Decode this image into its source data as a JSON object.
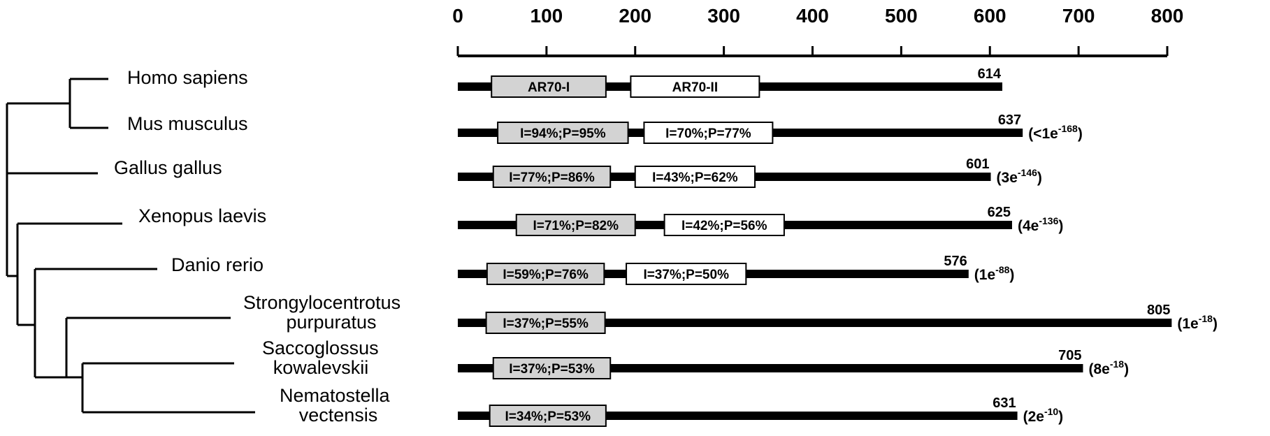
{
  "axis": {
    "ticks": [
      0,
      100,
      200,
      300,
      400,
      500,
      600,
      700,
      800
    ],
    "tick_labels": [
      "0",
      "100",
      "200",
      "300",
      "400",
      "500",
      "600",
      "700",
      "800"
    ],
    "range": [
      0,
      800
    ]
  },
  "domains": {
    "first_name": "AR70-I",
    "second_name": "AR70-II",
    "first_fill": "#d3d3d3",
    "second_fill": "#ffffff"
  },
  "rows": [
    {
      "species": [
        "Homo sapiens"
      ],
      "length": 614,
      "length_label": "614",
      "d1": {
        "start": 38,
        "end": 167,
        "label": "AR70-I"
      },
      "d2": {
        "start": 195,
        "end": 340,
        "label": "AR70-II"
      },
      "evalue": null
    },
    {
      "species": [
        "Mus musculus"
      ],
      "length": 637,
      "length_label": "637",
      "d1": {
        "start": 45,
        "end": 192,
        "label": "I=94%;P=95%"
      },
      "d2": {
        "start": 210,
        "end": 355,
        "label": "I=70%;P=77%"
      },
      "evalue": {
        "prefix": "(<1e",
        "exp": "-168",
        "suffix": ")"
      }
    },
    {
      "species": [
        "Gallus gallus"
      ],
      "length": 601,
      "length_label": "601",
      "d1": {
        "start": 40,
        "end": 172,
        "label": "I=77%;P=86%"
      },
      "d2": {
        "start": 200,
        "end": 335,
        "label": "I=43%;P=62%"
      },
      "evalue": {
        "prefix": "(3e",
        "exp": "-146",
        "suffix": ")"
      }
    },
    {
      "species": [
        "Xenopus laevis"
      ],
      "length": 625,
      "length_label": "625",
      "d1": {
        "start": 66,
        "end": 200,
        "label": "I=71%;P=82%"
      },
      "d2": {
        "start": 233,
        "end": 368,
        "label": "I=42%;P=56%"
      },
      "evalue": {
        "prefix": "(4e",
        "exp": "-136",
        "suffix": ")"
      }
    },
    {
      "species": [
        "Danio rerio"
      ],
      "length": 576,
      "length_label": "576",
      "d1": {
        "start": 33,
        "end": 165,
        "label": "I=59%;P=76%"
      },
      "d2": {
        "start": 190,
        "end": 325,
        "label": "I=37%;P=50%"
      },
      "evalue": {
        "prefix": "(1e",
        "exp": "-88",
        "suffix": ")"
      }
    },
    {
      "species": [
        "Strongylocentrotus",
        "purpuratus"
      ],
      "length": 805,
      "length_label": "805",
      "d1": {
        "start": 32,
        "end": 166,
        "label": "I=37%;P=55%"
      },
      "d2": null,
      "evalue": {
        "prefix": "(1e",
        "exp": "-18",
        "suffix": ")"
      }
    },
    {
      "species": [
        "Saccoglossus",
        "kowalevskii"
      ],
      "length": 705,
      "length_label": "705",
      "d1": {
        "start": 40,
        "end": 172,
        "label": "I=37%;P=53%"
      },
      "d2": null,
      "evalue": {
        "prefix": "(8e",
        "exp": "-18",
        "suffix": ")"
      }
    },
    {
      "species": [
        "Nematostella",
        "vectensis"
      ],
      "length": 631,
      "length_label": "631",
      "d1": {
        "start": 36,
        "end": 167,
        "label": "I=34%;P=53%"
      },
      "d2": null,
      "evalue": {
        "prefix": "(2e",
        "exp": "-10",
        "suffix": ")"
      }
    }
  ]
}
